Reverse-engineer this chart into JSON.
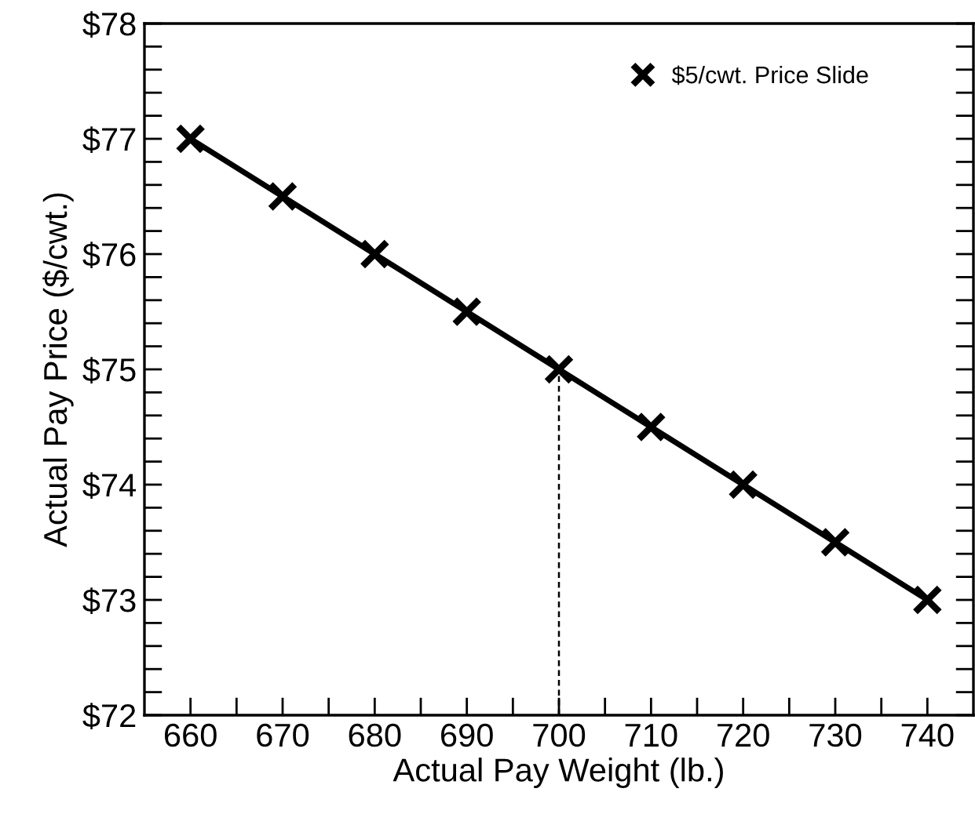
{
  "chart_data": {
    "type": "line",
    "xlabel": "Actual Pay Weight (lb.)",
    "ylabel": "Actual Pay Price ($/cwt.)",
    "x": [
      660,
      670,
      680,
      690,
      700,
      710,
      720,
      730,
      740
    ],
    "series": [
      {
        "name": "$5/cwt. Price Slide",
        "color": "#000000",
        "values": [
          77,
          76.5,
          76,
          75.5,
          75,
          74.5,
          74,
          73.5,
          73
        ]
      }
    ],
    "marker": "cross",
    "line_style": "solid",
    "legend": "top right",
    "grid": false,
    "xlim": [
      655,
      745
    ],
    "xticks": [
      660,
      {
        "value": 665,
        "label": null
      },
      670,
      {
        "value": 675,
        "label": null
      },
      680,
      {
        "value": 685,
        "label": null
      },
      690,
      {
        "value": 695,
        "label": null
      },
      700,
      {
        "value": 705,
        "label": null
      },
      710,
      {
        "value": 715,
        "label": null
      },
      720,
      {
        "value": 725,
        "label": null
      },
      730,
      {
        "value": 735,
        "label": null
      },
      740
    ],
    "ylim": [
      72,
      78
    ],
    "yticks": [
      {
        "value": 72,
        "label": "$72"
      },
      {
        "value": 72.2,
        "label": null
      },
      {
        "value": 72.4,
        "label": null
      },
      {
        "value": 72.6,
        "label": null
      },
      {
        "value": 72.8,
        "label": null
      },
      {
        "value": 73,
        "label": "$73"
      },
      {
        "value": 73.2,
        "label": null
      },
      {
        "value": 73.4,
        "label": null
      },
      {
        "value": 73.6,
        "label": null
      },
      {
        "value": 73.8,
        "label": null
      },
      {
        "value": 74,
        "label": "$74"
      },
      {
        "value": 74.2,
        "label": null
      },
      {
        "value": 74.4,
        "label": null
      },
      {
        "value": 74.6,
        "label": null
      },
      {
        "value": 74.8,
        "label": null
      },
      {
        "value": 75,
        "label": "$75"
      },
      {
        "value": 75.2,
        "label": null
      },
      {
        "value": 75.4,
        "label": null
      },
      {
        "value": 75.6,
        "label": null
      },
      {
        "value": 75.8,
        "label": null
      },
      {
        "value": 76,
        "label": "$76"
      },
      {
        "value": 76.2,
        "label": null
      },
      {
        "value": 76.4,
        "label": null
      },
      {
        "value": 76.6,
        "label": null
      },
      {
        "value": 76.8,
        "label": null
      },
      {
        "value": 77,
        "label": "$77"
      },
      {
        "value": 77.2,
        "label": null
      },
      {
        "value": 77.4,
        "label": null
      },
      {
        "value": 77.6,
        "label": null
      },
      {
        "value": 77.8,
        "label": null
      },
      {
        "value": 78,
        "label": "$78"
      }
    ],
    "ref_lines": [
      {
        "axis": "x",
        "value": 700,
        "line_style": "dashed",
        "color": "#000000"
      }
    ]
  }
}
